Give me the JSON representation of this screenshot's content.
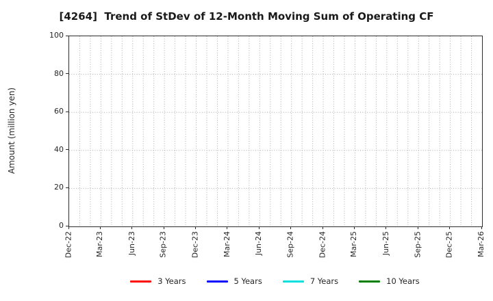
{
  "title": "[4264]  Trend of StDev of 12-Month Moving Sum of Operating CF",
  "colors": {
    "background": "#ffffff",
    "axis_spine": "#2b2b2b",
    "grid": "#aaaaaa",
    "tick_text": "#262626",
    "title_text": "#1a1a1a"
  },
  "y_axis": {
    "label": "Amount (million yen)",
    "ticks": [
      0,
      20,
      40,
      60,
      80,
      100
    ],
    "min": 0,
    "max": 100
  },
  "x_axis": {
    "tick_labels": [
      "Dec-22",
      "Mar-23",
      "Jun-23",
      "Sep-23",
      "Dec-23",
      "Mar-24",
      "Jun-24",
      "Sep-24",
      "Dec-24",
      "Mar-25",
      "Jun-25",
      "Sep-25",
      "Dec-25",
      "Mar-26"
    ],
    "months_total": 39,
    "months_per_tick": 3
  },
  "legend": {
    "items": [
      {
        "label": "3 Years",
        "color": "#ff0000"
      },
      {
        "label": "5 Years",
        "color": "#0000ff"
      },
      {
        "label": "7 Years",
        "color": "#00e0e0"
      },
      {
        "label": "10 Years",
        "color": "#008000"
      }
    ]
  },
  "chart_data": {
    "type": "line",
    "title": "[4264]  Trend of StDev of 12-Month Moving Sum of Operating CF",
    "xlabel": "",
    "ylabel": "Amount (million yen)",
    "ylim": [
      0,
      100
    ],
    "y_ticks": [
      0,
      20,
      40,
      60,
      80,
      100
    ],
    "x_tick_labels": [
      "Dec-22",
      "Mar-23",
      "Jun-23",
      "Sep-23",
      "Dec-23",
      "Mar-24",
      "Jun-24",
      "Sep-24",
      "Dec-24",
      "Mar-25",
      "Jun-25",
      "Sep-25",
      "Dec-25",
      "Mar-26"
    ],
    "grid": "dotted, monthly vertical lines and horizontal lines at each y tick",
    "legend_position": "bottom-center",
    "series": [
      {
        "name": "3 Years",
        "color": "#ff0000",
        "values": []
      },
      {
        "name": "5 Years",
        "color": "#0000ff",
        "values": []
      },
      {
        "name": "7 Years",
        "color": "#00e0e0",
        "values": []
      },
      {
        "name": "10 Years",
        "color": "#008000",
        "values": []
      }
    ],
    "note": "axes, grid and legend are drawn but no data points are plotted"
  }
}
